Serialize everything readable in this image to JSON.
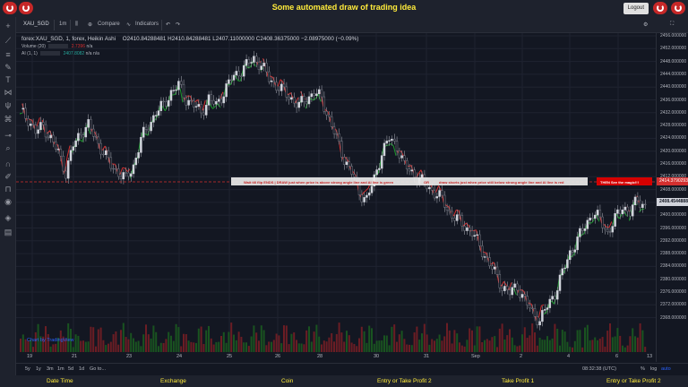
{
  "banner": {
    "title": "Some automated draw of trading idea",
    "logout_label": "Logout"
  },
  "toolbar": {
    "symbol": "XAU_SGD",
    "interval": "1m",
    "compare_label": "Compare",
    "indicators_label": "Indicators"
  },
  "legend": {
    "main": "forex:XAU_SGD, 1, forex, Heikin Ashi",
    "ohlc": "O2410.84288481  H2410.84288481  L2407.11000000  C2408.36375000  −2.08975000 (−0.09%)",
    "volume_label": "Volume (20)",
    "volume_value": "2.7396",
    "volume_value2": "n/a",
    "ai_label": "AI (1, 1)",
    "ai_value1": "2407.8082",
    "ai_value2": "n/a",
    "ai_value3": "n/a"
  },
  "annotation": {
    "segments": [
      "Wait till flip ENDS   |   DRAW just when   price is above strong angle line and AI line is green",
      "OR",
      "draw shorts just when price still below strong angle line and AI line is red"
    ],
    "magic_label": "THEN See the magic!!!",
    "level_label": "2414.3790293"
  },
  "price_axis": {
    "labels": [
      "2456.000000",
      "2452.000000",
      "2448.000000",
      "2444.000000",
      "2440.000000",
      "2436.000000",
      "2432.000000",
      "2428.000000",
      "2424.000000",
      "2420.000000",
      "2416.000000",
      "2412.000000",
      "2408.000000",
      "2404.000000",
      "2400.000000",
      "2396.000000",
      "2392.000000",
      "2388.000000",
      "2384.000000",
      "2380.000000",
      "2376.000000",
      "2372.000000",
      "2368.000000"
    ],
    "current_price_label": "2408.4544888"
  },
  "time_axis": {
    "labels": [
      "19",
      "21",
      "23",
      "24",
      "25",
      "26",
      "28",
      "30",
      "31",
      "Sep",
      "2",
      "4",
      "6",
      "13"
    ]
  },
  "range_bar": {
    "ranges": [
      "5y",
      "1y",
      "3m",
      "1m",
      "5d",
      "1d",
      "Go to..."
    ],
    "time": "08:32:38 (UTC)",
    "pct": "%",
    "log": "log",
    "auto": "auto"
  },
  "footer": {
    "columns": [
      "Date Time",
      "Exchange",
      "Coin",
      "Entry or Take Profit 2",
      "Take Profit 1",
      "Entry or Take Profit 2"
    ]
  },
  "watermark": "Chart by TradingView",
  "chart_data": {
    "type": "candlestick",
    "series_close": [
      2436,
      2434,
      2430,
      2432,
      2428,
      2424,
      2418,
      2426,
      2430,
      2432,
      2428,
      2424,
      2420,
      2418,
      2416,
      2420,
      2428,
      2432,
      2436,
      2438,
      2442,
      2444,
      2440,
      2438,
      2436,
      2440,
      2438,
      2442,
      2446,
      2448,
      2450,
      2452,
      2450,
      2446,
      2444,
      2442,
      2440,
      2438,
      2440,
      2442,
      2440,
      2434,
      2428,
      2422,
      2418,
      2412,
      2410,
      2416,
      2424,
      2428,
      2426,
      2420,
      2418,
      2416,
      2414,
      2412,
      2410,
      2406,
      2404,
      2402,
      2400,
      2396,
      2392,
      2388,
      2384,
      2382,
      2384,
      2380,
      2376,
      2374,
      2378,
      2382,
      2388,
      2394,
      2398,
      2402,
      2406,
      2404,
      2400,
      2404,
      2408,
      2406,
      2410,
      2408
    ],
    "ylim": [
      2366,
      2458
    ]
  },
  "colors": {
    "up": "#d1d4dc",
    "down": "#787b86",
    "ai_green": "#1b9a2c",
    "ai_red": "#d32f2f",
    "accent": "#ffeb3b"
  }
}
